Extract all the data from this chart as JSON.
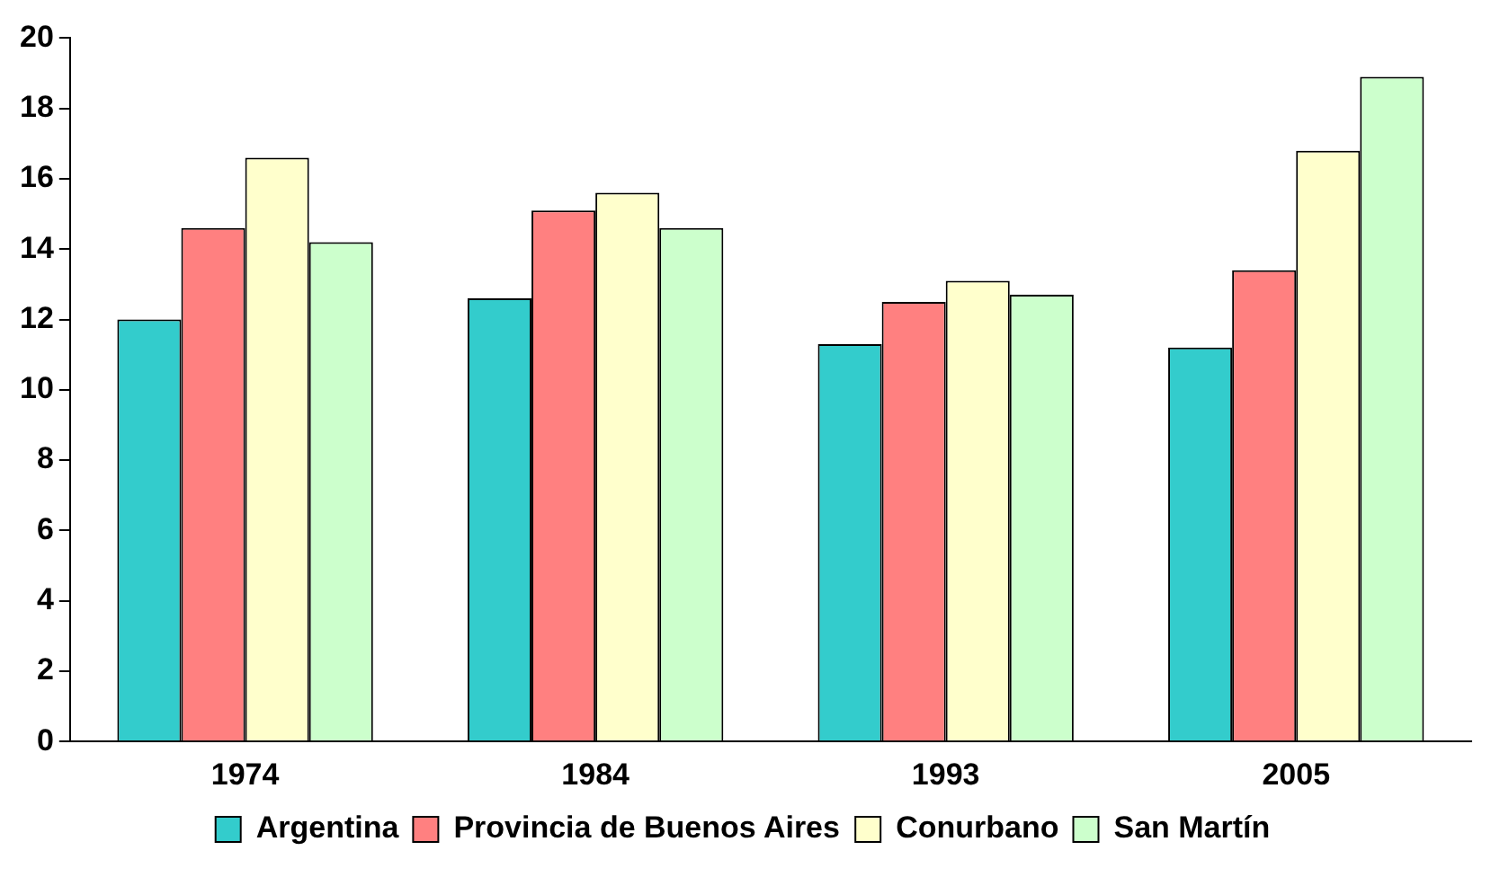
{
  "chart_data": {
    "type": "bar",
    "categories": [
      "1974",
      "1984",
      "1993",
      "2005"
    ],
    "series": [
      {
        "name": "Argentina",
        "color": "#33cccc",
        "values": [
          12.0,
          12.6,
          11.3,
          11.2
        ]
      },
      {
        "name": "Provincia de Buenos Aires",
        "color": "#ff8080",
        "values": [
          14.6,
          15.1,
          12.5,
          13.4
        ]
      },
      {
        "name": "Conurbano",
        "color": "#ffffcc",
        "values": [
          16.6,
          15.6,
          13.1,
          16.8
        ]
      },
      {
        "name": "San Martín",
        "color": "#ccffcc",
        "values": [
          14.2,
          14.6,
          12.7,
          18.9
        ]
      }
    ],
    "ylim": [
      0,
      20
    ],
    "yticks": [
      0,
      2,
      4,
      6,
      8,
      10,
      12,
      14,
      16,
      18,
      20
    ],
    "grid": false,
    "legend": "bottom"
  }
}
